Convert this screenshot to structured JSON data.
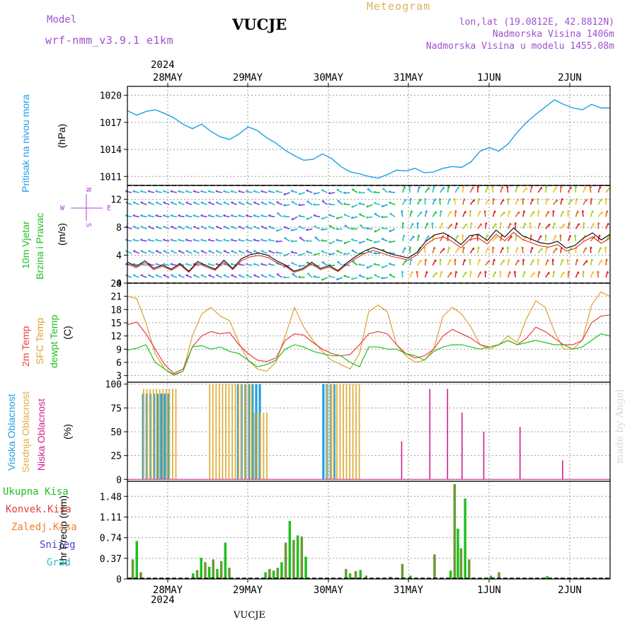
{
  "header": {
    "model_label": "Model",
    "model_version": "wrf-nmm_v3.9.1 e1km",
    "station": "VUCJE",
    "chart_kind": "Meteogram",
    "location": "lon,lat (19.0812E, 42.8812N)",
    "altitude": "Nadmorska Visina 1406m",
    "model_altitude": "Nadmorska Visina u modelu 1455.08m",
    "year": "2024",
    "footer_station": "VUCJE",
    "watermark": "made by Angel"
  },
  "colors": {
    "pressure": "#1ca0e6",
    "wind_label": "#20c020",
    "wind_speed": "#e03020",
    "wind_speed_alt": "#000000",
    "temp_2m": "#e84040",
    "temp_sfc": "#e0a030",
    "temp_dewpt": "#20c020",
    "cloud_high": "#20a0e0",
    "cloud_mid": "#e0b040",
    "cloud_low": "#d0208a",
    "precip_total": "#20c020",
    "precip_conv": "#e04040",
    "precip_frz": "#f08030",
    "precip_snow": "#5040d0",
    "precip_grad": "#30c0c0",
    "compass": "#b040d0"
  },
  "chart_data": [
    {
      "type": "line",
      "panel": "pressure",
      "label": "Pritisak na nivou mora",
      "ylabel": "(hPa)",
      "x_ticks": [
        "28MAY",
        "29MAY",
        "30MAY",
        "31MAY",
        "1JUN",
        "2JUN"
      ],
      "ylim": [
        1010,
        1021
      ],
      "yticks": [
        1011,
        1014,
        1017,
        1020
      ],
      "grid": true,
      "series": [
        {
          "values": [
            1018.3,
            1017.8,
            1018.2,
            1018.4,
            1018.0,
            1017.5,
            1016.8,
            1016.3,
            1016.8,
            1016.0,
            1015.4,
            1015.1,
            1015.7,
            1016.5,
            1016.1,
            1015.3,
            1014.7,
            1013.9,
            1013.3,
            1012.8,
            1012.9,
            1013.5,
            1013.0,
            1012.1,
            1011.5,
            1011.3,
            1011.0,
            1010.8,
            1011.2,
            1011.7,
            1011.6,
            1011.9,
            1011.4,
            1011.5,
            1011.9,
            1012.1,
            1012.0,
            1012.6,
            1013.8,
            1014.2,
            1013.8,
            1014.6,
            1015.9,
            1017.0,
            1017.9,
            1018.7,
            1019.5,
            1019.0,
            1018.6,
            1018.4,
            1019.0,
            1018.6,
            1018.6
          ]
        }
      ]
    },
    {
      "type": "line",
      "panel": "wind",
      "label_lines": [
        "10m Vjetar",
        "Brzina i Pravac"
      ],
      "ylabel": "(m/s)",
      "compass": [
        "N",
        "S",
        "W",
        "E"
      ],
      "ylim": [
        0,
        14
      ],
      "yticks": [
        0,
        4,
        8,
        12
      ],
      "grid": true,
      "series": [
        {
          "name": "speed",
          "values": [
            3.0,
            2.4,
            3.2,
            2.1,
            2.6,
            2.0,
            2.8,
            1.7,
            3.1,
            2.5,
            2.0,
            3.3,
            2.1,
            3.5,
            4.1,
            4.3,
            4.0,
            3.2,
            2.6,
            1.7,
            2.1,
            3.0,
            2.1,
            2.5,
            1.8,
            2.9,
            3.8,
            4.6,
            5.1,
            4.7,
            4.2,
            3.9,
            3.6,
            4.4,
            6.0,
            6.9,
            7.2,
            6.5,
            5.5,
            6.8,
            7.0,
            6.1,
            7.6,
            6.6,
            7.9,
            6.8,
            6.3,
            5.8,
            5.6,
            6.0,
            5.0,
            5.4,
            6.5,
            7.2,
            6.2,
            7.0
          ]
        }
      ]
    },
    {
      "type": "line",
      "panel": "temperature",
      "label_lines": [
        "2m Temp",
        "SFC Temp",
        "dewpt Temp"
      ],
      "ylabel": "(C)",
      "ylim": [
        1.5,
        24
      ],
      "yticks": [
        3,
        6,
        9,
        12,
        15,
        18,
        21,
        24
      ],
      "grid": true,
      "series": [
        {
          "name": "2m Temp",
          "values": [
            14.5,
            15.2,
            12.5,
            9.0,
            5.5,
            3.5,
            4.5,
            9.5,
            12.0,
            13.0,
            12.5,
            12.8,
            10.0,
            8.0,
            6.5,
            6.2,
            7.0,
            11.0,
            12.5,
            12.2,
            10.5,
            9.0,
            8.0,
            7.5,
            7.8,
            10.0,
            12.5,
            13.0,
            12.5,
            10.0,
            8.0,
            7.0,
            7.5,
            9.0,
            12.0,
            13.5,
            12.5,
            11.5,
            10.0,
            9.5,
            10.0,
            11.0,
            10.0,
            11.5,
            14.0,
            13.0,
            11.5,
            10.0,
            10.0,
            11.0,
            15.0,
            16.5,
            16.8
          ]
        },
        {
          "name": "SFC Temp",
          "values": [
            21.0,
            20.5,
            15.0,
            8.0,
            4.5,
            3.0,
            4.0,
            12.0,
            17.0,
            18.5,
            16.5,
            15.5,
            10.5,
            6.5,
            4.5,
            4.0,
            6.0,
            12.0,
            18.5,
            14.0,
            11.0,
            8.5,
            6.5,
            5.5,
            4.5,
            8.0,
            17.5,
            19.0,
            17.5,
            10.0,
            7.5,
            6.0,
            6.5,
            9.0,
            16.5,
            18.5,
            17.0,
            14.0,
            10.0,
            9.0,
            10.0,
            12.0,
            10.5,
            16.0,
            20.0,
            18.5,
            13.0,
            9.0,
            9.0,
            11.0,
            19.0,
            22.0,
            21.0
          ]
        },
        {
          "name": "dewpt Temp",
          "values": [
            8.8,
            9.2,
            10.0,
            6.0,
            4.5,
            3.2,
            4.0,
            9.5,
            9.8,
            9.0,
            9.5,
            8.5,
            8.0,
            6.5,
            5.0,
            5.5,
            6.5,
            9.0,
            10.0,
            9.5,
            8.5,
            8.0,
            7.5,
            7.5,
            6.0,
            5.0,
            9.5,
            9.5,
            9.0,
            9.0,
            8.0,
            7.5,
            6.5,
            8.5,
            9.5,
            10.0,
            10.0,
            9.5,
            9.0,
            9.5,
            10.0,
            11.0,
            10.0,
            10.5,
            11.0,
            10.5,
            10.0,
            10.0,
            9.0,
            9.5,
            11.0,
            12.5,
            12.0
          ]
        }
      ]
    },
    {
      "type": "bar",
      "panel": "clouds",
      "label_lines": [
        "Visoka Oblacnost",
        "Srednja Oblacnost",
        "Niska Oblacnost"
      ],
      "ylabel": "(%)",
      "ylim": [
        0,
        100
      ],
      "yticks": [
        0,
        25,
        50,
        75,
        100
      ],
      "grid": true,
      "note": "hourly bars; high cloud near 100% on 28MAY-30MAY and 30MAY-31MAY, scattered low cloud afterwards",
      "high_segments": [
        [
          0.18,
          0.52,
          0.9
        ],
        [
          1.36,
          1.66,
          1.0
        ],
        [
          2.42,
          2.58,
          1.0
        ]
      ],
      "mid_segments": [
        [
          0.18,
          0.6,
          0.95
        ],
        [
          1.0,
          1.55,
          1.0
        ],
        [
          1.55,
          1.75,
          0.7
        ],
        [
          2.46,
          2.88,
          1.0
        ]
      ],
      "low_bars": [
        [
          3.4,
          0.4
        ],
        [
          3.75,
          0.95
        ],
        [
          3.97,
          0.95
        ],
        [
          4.15,
          0.7
        ],
        [
          4.42,
          0.5
        ],
        [
          4.87,
          0.55
        ],
        [
          5.4,
          0.2
        ]
      ]
    },
    {
      "type": "bar",
      "panel": "precipitation",
      "label_lines": [
        "Ukupna Kisa",
        "Konvek.Kisa",
        "Zaledj.Kisa",
        "Snijeg",
        "Grad"
      ],
      "ylabel": "1hr Precip (mm)",
      "ylim": [
        0,
        1.75
      ],
      "yticks": [
        0,
        0.37,
        0.74,
        1.11,
        1.48
      ],
      "grid": true,
      "bars": [
        [
          0.05,
          0.35
        ],
        [
          0.1,
          0.68
        ],
        [
          0.15,
          0.12
        ],
        [
          0.8,
          0.1
        ],
        [
          0.85,
          0.16
        ],
        [
          0.9,
          0.38
        ],
        [
          0.95,
          0.3
        ],
        [
          1.0,
          0.22
        ],
        [
          1.05,
          0.35
        ],
        [
          1.1,
          0.18
        ],
        [
          1.15,
          0.32
        ],
        [
          1.2,
          0.65
        ],
        [
          1.25,
          0.2
        ],
        [
          1.7,
          0.12
        ],
        [
          1.75,
          0.18
        ],
        [
          1.8,
          0.15
        ],
        [
          1.85,
          0.2
        ],
        [
          1.9,
          0.3
        ],
        [
          1.95,
          0.65
        ],
        [
          2.0,
          1.04
        ],
        [
          2.05,
          0.7
        ],
        [
          2.1,
          0.78
        ],
        [
          2.15,
          0.76
        ],
        [
          2.2,
          0.4
        ],
        [
          2.7,
          0.18
        ],
        [
          2.75,
          0.1
        ],
        [
          2.82,
          0.14
        ],
        [
          2.88,
          0.16
        ],
        [
          2.95,
          0.06
        ],
        [
          3.25,
          0.04
        ],
        [
          3.4,
          0.27
        ],
        [
          3.5,
          0.06
        ],
        [
          3.8,
          0.44
        ],
        [
          4.0,
          0.15
        ],
        [
          4.05,
          1.7
        ],
        [
          4.09,
          0.9
        ],
        [
          4.13,
          0.55
        ],
        [
          4.18,
          1.44
        ],
        [
          4.23,
          0.35
        ],
        [
          4.5,
          0.06
        ],
        [
          4.6,
          0.12
        ],
        [
          5.2,
          0.05
        ]
      ]
    }
  ]
}
